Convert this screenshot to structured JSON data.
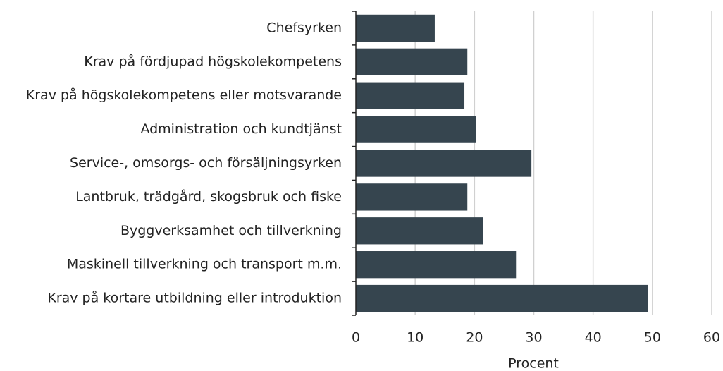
{
  "chart_data": {
    "type": "bar",
    "orientation": "horizontal",
    "categories": [
      "Chefsyrken",
      "Krav på fördjupad högskolekompetens",
      "Krav på högskolekompetens eller motsvarande",
      "Administration och kundtjänst",
      "Service-, omsorgs- och försäljningsyrken",
      "Lantbruk, trädgård, skogsbruk och fiske",
      "Byggverksamhet och tillverkning",
      "Maskinell tillverkning och transport m.m.",
      "Krav på kortare utbildning eller introduktion"
    ],
    "values": [
      13.3,
      18.8,
      18.3,
      20.2,
      29.6,
      18.8,
      21.5,
      27.0,
      49.2
    ],
    "color": "#36454f",
    "xlabel": "Procent",
    "xlim": [
      0,
      60
    ],
    "xticks": [
      0,
      10,
      20,
      30,
      40,
      50,
      60
    ],
    "grid": true
  }
}
